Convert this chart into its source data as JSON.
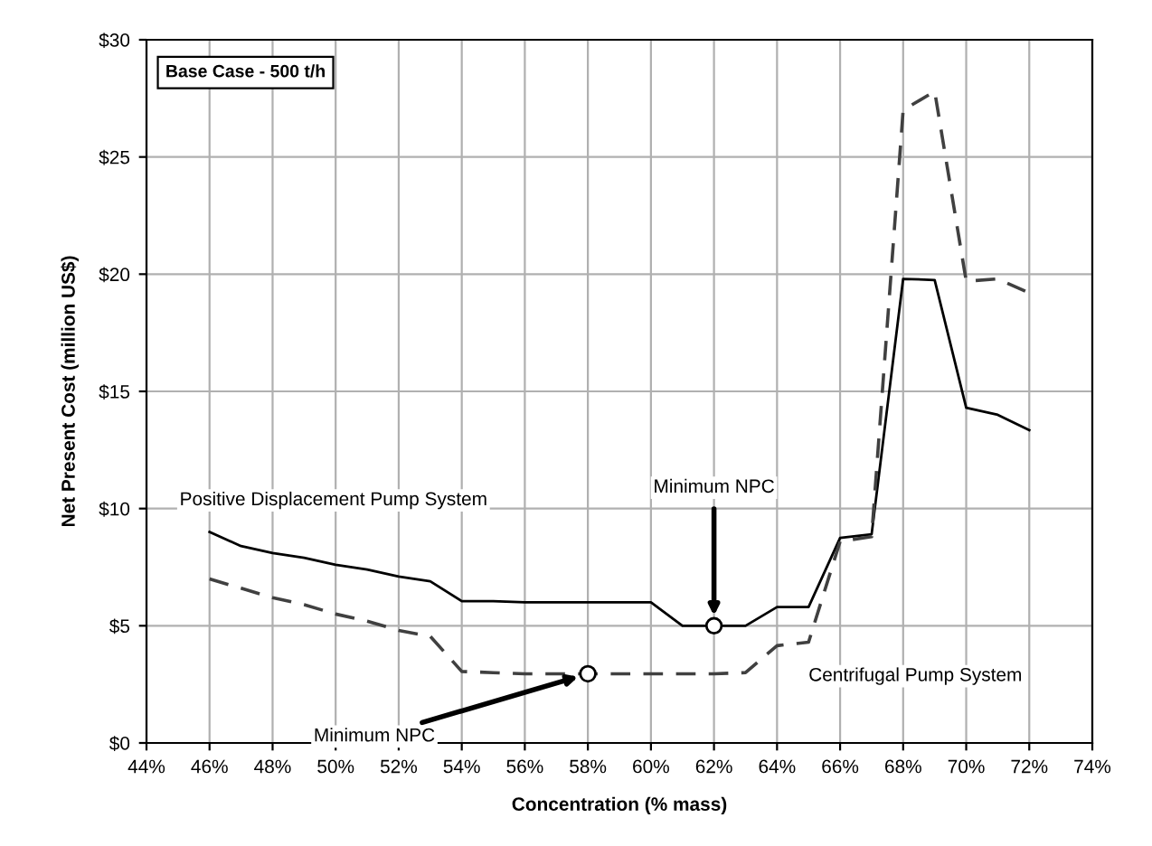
{
  "chart_data": {
    "type": "line",
    "xlabel": "Concentration (% mass)",
    "ylabel": "Net Present Cost (million US$)",
    "x": [
      46,
      47,
      48,
      49,
      50,
      51,
      52,
      53,
      54,
      55,
      56,
      57,
      58,
      59,
      60,
      61,
      62,
      63,
      64,
      65,
      66,
      67,
      68,
      69,
      70,
      71,
      72
    ],
    "series": [
      {
        "name": "Positive Displacement Pump System",
        "color": "#000000",
        "line_style": "solid",
        "values": [
          9.0,
          8.4,
          8.1,
          7.9,
          7.6,
          7.4,
          7.1,
          6.9,
          6.05,
          6.05,
          6.0,
          6.0,
          6.0,
          6.0,
          6.0,
          5.0,
          5.0,
          5.0,
          5.8,
          5.8,
          8.75,
          8.9,
          19.8,
          19.75,
          14.3,
          14.0,
          13.35
        ]
      },
      {
        "name": "Centrifugal Pump System",
        "color": "#404040",
        "line_style": "dashed",
        "values": [
          7.0,
          6.6,
          6.2,
          5.9,
          5.5,
          5.2,
          4.8,
          4.55,
          3.05,
          3.0,
          2.95,
          2.95,
          2.95,
          2.95,
          2.95,
          2.95,
          2.95,
          3.0,
          4.15,
          4.3,
          8.6,
          8.8,
          27.0,
          27.8,
          19.7,
          19.8,
          19.2
        ]
      }
    ],
    "xlim": [
      44,
      74
    ],
    "xticks": [
      {
        "value": 44,
        "label": "44%"
      },
      {
        "value": 46,
        "label": "46%"
      },
      {
        "value": 48,
        "label": "48%"
      },
      {
        "value": 50,
        "label": "50%"
      },
      {
        "value": 52,
        "label": "52%"
      },
      {
        "value": 54,
        "label": "54%"
      },
      {
        "value": 56,
        "label": "56%"
      },
      {
        "value": 58,
        "label": "58%"
      },
      {
        "value": 60,
        "label": "60%"
      },
      {
        "value": 62,
        "label": "62%"
      },
      {
        "value": 64,
        "label": "64%"
      },
      {
        "value": 66,
        "label": "66%"
      },
      {
        "value": 68,
        "label": "68%"
      },
      {
        "value": 70,
        "label": "70%"
      },
      {
        "value": 72,
        "label": "72%"
      },
      {
        "value": 74,
        "label": "74%"
      }
    ],
    "ylim": [
      0,
      30
    ],
    "yticks": [
      {
        "value": 0,
        "label": "$0"
      },
      {
        "value": 5,
        "label": "$5"
      },
      {
        "value": 10,
        "label": "$10"
      },
      {
        "value": 15,
        "label": "$15"
      },
      {
        "value": 20,
        "label": "$20"
      },
      {
        "value": 25,
        "label": "$25"
      },
      {
        "value": 30,
        "label": "$30"
      }
    ],
    "grid": true,
    "legend": false,
    "marker": "none",
    "annotations": [
      "Base Case - 500 t/h",
      {
        "text": "Minimum NPC",
        "x": 62,
        "y": 5.0
      },
      {
        "text": "Minimum NPC",
        "x": 58,
        "y": 2.95
      }
    ]
  }
}
